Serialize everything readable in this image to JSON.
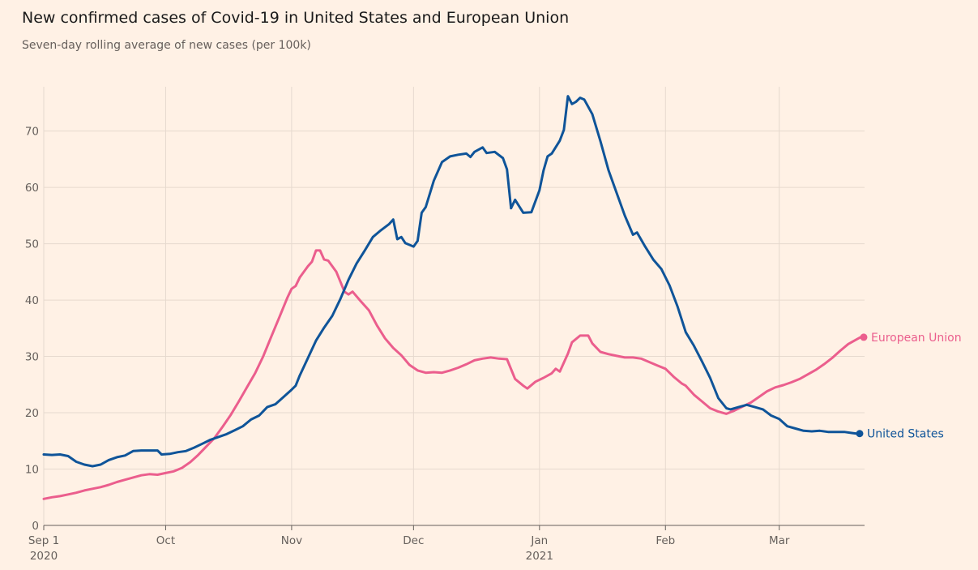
{
  "header": {
    "title": "New confirmed cases of Covid-19 in United States and European Union",
    "subtitle": "Seven-day rolling average of new cases (per 100k)"
  },
  "colors": {
    "background": "#fff1e5",
    "grid": "#e6d9ce",
    "axis": "#66605c",
    "us": "#0f5499",
    "eu": "#eb5e8d"
  },
  "chart_data": {
    "type": "line",
    "title": "New confirmed cases of Covid-19 in United States and European Union",
    "subtitle": "Seven-day rolling average of new cases (per 100k)",
    "xlabel": "",
    "ylabel": "",
    "x_range": [
      "2020-09-01",
      "2021-03-22"
    ],
    "ylim": [
      0,
      77
    ],
    "y_ticks": [
      0,
      10,
      20,
      30,
      40,
      50,
      60,
      70
    ],
    "x_ticks": [
      {
        "date": "2020-09-01",
        "label": "Sep 1",
        "sublabel": "2020"
      },
      {
        "date": "2020-10-01",
        "label": "Oct",
        "sublabel": ""
      },
      {
        "date": "2020-11-01",
        "label": "Nov",
        "sublabel": ""
      },
      {
        "date": "2020-12-01",
        "label": "Dec",
        "sublabel": ""
      },
      {
        "date": "2021-01-01",
        "label": "Jan",
        "sublabel": "2021"
      },
      {
        "date": "2021-02-01",
        "label": "Feb",
        "sublabel": ""
      },
      {
        "date": "2021-03-01",
        "label": "Mar",
        "sublabel": ""
      }
    ],
    "grid": true,
    "legend": "direct labels at line ends",
    "series": [
      {
        "name": "United States",
        "color": "#0f5499",
        "points": [
          [
            "2020-09-01",
            12.6
          ],
          [
            "2020-09-03",
            12.5
          ],
          [
            "2020-09-05",
            12.6
          ],
          [
            "2020-09-07",
            12.3
          ],
          [
            "2020-09-09",
            11.3
          ],
          [
            "2020-09-11",
            10.8
          ],
          [
            "2020-09-13",
            10.5
          ],
          [
            "2020-09-15",
            10.8
          ],
          [
            "2020-09-17",
            11.6
          ],
          [
            "2020-09-19",
            12.1
          ],
          [
            "2020-09-21",
            12.4
          ],
          [
            "2020-09-23",
            13.2
          ],
          [
            "2020-09-25",
            13.3
          ],
          [
            "2020-09-27",
            13.3
          ],
          [
            "2020-09-29",
            13.3
          ],
          [
            "2020-09-30",
            12.6
          ],
          [
            "2020-10-02",
            12.7
          ],
          [
            "2020-10-04",
            13.0
          ],
          [
            "2020-10-06",
            13.2
          ],
          [
            "2020-10-08",
            13.8
          ],
          [
            "2020-10-10",
            14.5
          ],
          [
            "2020-10-12",
            15.2
          ],
          [
            "2020-10-14",
            15.7
          ],
          [
            "2020-10-16",
            16.2
          ],
          [
            "2020-10-18",
            16.9
          ],
          [
            "2020-10-20",
            17.6
          ],
          [
            "2020-10-22",
            18.8
          ],
          [
            "2020-10-24",
            19.5
          ],
          [
            "2020-10-26",
            21.0
          ],
          [
            "2020-10-28",
            21.5
          ],
          [
            "2020-10-30",
            22.8
          ],
          [
            "2020-11-01",
            24.1
          ],
          [
            "2020-11-02",
            24.8
          ],
          [
            "2020-11-03",
            26.6
          ],
          [
            "2020-11-05",
            29.7
          ],
          [
            "2020-11-07",
            32.8
          ],
          [
            "2020-11-09",
            35.1
          ],
          [
            "2020-11-11",
            37.2
          ],
          [
            "2020-11-13",
            40.2
          ],
          [
            "2020-11-15",
            43.6
          ],
          [
            "2020-11-17",
            46.5
          ],
          [
            "2020-11-19",
            48.8
          ],
          [
            "2020-11-21",
            51.2
          ],
          [
            "2020-11-23",
            52.4
          ],
          [
            "2020-11-25",
            53.5
          ],
          [
            "2020-11-26",
            54.3
          ],
          [
            "2020-11-27",
            50.8
          ],
          [
            "2020-11-28",
            51.2
          ],
          [
            "2020-11-29",
            50.1
          ],
          [
            "2020-12-01",
            49.5
          ],
          [
            "2020-12-02",
            50.5
          ],
          [
            "2020-12-03",
            55.5
          ],
          [
            "2020-12-04",
            56.5
          ],
          [
            "2020-12-06",
            61.2
          ],
          [
            "2020-12-08",
            64.5
          ],
          [
            "2020-12-10",
            65.5
          ],
          [
            "2020-12-12",
            65.8
          ],
          [
            "2020-12-14",
            66.0
          ],
          [
            "2020-12-15",
            65.4
          ],
          [
            "2020-12-16",
            66.3
          ],
          [
            "2020-12-18",
            67.1
          ],
          [
            "2020-12-19",
            66.1
          ],
          [
            "2020-12-21",
            66.3
          ],
          [
            "2020-12-23",
            65.2
          ],
          [
            "2020-12-24",
            63.2
          ],
          [
            "2020-12-25",
            56.3
          ],
          [
            "2020-12-26",
            57.8
          ],
          [
            "2020-12-28",
            55.5
          ],
          [
            "2020-12-30",
            55.6
          ],
          [
            "2021-01-01",
            59.5
          ],
          [
            "2021-01-02",
            63.0
          ],
          [
            "2021-01-03",
            65.5
          ],
          [
            "2021-01-04",
            66.0
          ],
          [
            "2021-01-06",
            68.3
          ],
          [
            "2021-01-07",
            70.2
          ],
          [
            "2021-01-08",
            76.2
          ],
          [
            "2021-01-09",
            74.8
          ],
          [
            "2021-01-10",
            75.2
          ],
          [
            "2021-01-11",
            75.9
          ],
          [
            "2021-01-12",
            75.6
          ],
          [
            "2021-01-14",
            73.0
          ],
          [
            "2021-01-16",
            68.2
          ],
          [
            "2021-01-18",
            63.0
          ],
          [
            "2021-01-20",
            59.0
          ],
          [
            "2021-01-22",
            55.0
          ],
          [
            "2021-01-24",
            51.6
          ],
          [
            "2021-01-25",
            52.0
          ],
          [
            "2021-01-27",
            49.5
          ],
          [
            "2021-01-29",
            47.2
          ],
          [
            "2021-01-31",
            45.5
          ],
          [
            "2021-02-02",
            42.6
          ],
          [
            "2021-02-04",
            38.8
          ],
          [
            "2021-02-06",
            34.3
          ],
          [
            "2021-02-08",
            31.9
          ],
          [
            "2021-02-10",
            29.1
          ],
          [
            "2021-02-12",
            26.2
          ],
          [
            "2021-02-14",
            22.6
          ],
          [
            "2021-02-16",
            20.8
          ],
          [
            "2021-02-17",
            20.6
          ],
          [
            "2021-02-19",
            21.0
          ],
          [
            "2021-02-21",
            21.4
          ],
          [
            "2021-02-23",
            21.0
          ],
          [
            "2021-02-25",
            20.6
          ],
          [
            "2021-02-27",
            19.5
          ],
          [
            "2021-03-01",
            18.9
          ],
          [
            "2021-03-03",
            17.6
          ],
          [
            "2021-03-05",
            17.2
          ],
          [
            "2021-03-07",
            16.8
          ],
          [
            "2021-03-09",
            16.7
          ],
          [
            "2021-03-11",
            16.8
          ],
          [
            "2021-03-13",
            16.6
          ],
          [
            "2021-03-15",
            16.6
          ],
          [
            "2021-03-17",
            16.6
          ],
          [
            "2021-03-19",
            16.4
          ],
          [
            "2021-03-20",
            16.3
          ]
        ]
      },
      {
        "name": "European Union",
        "color": "#eb5e8d",
        "points": [
          [
            "2020-09-01",
            4.7
          ],
          [
            "2020-09-03",
            5.0
          ],
          [
            "2020-09-05",
            5.2
          ],
          [
            "2020-09-07",
            5.5
          ],
          [
            "2020-09-09",
            5.8
          ],
          [
            "2020-09-11",
            6.2
          ],
          [
            "2020-09-13",
            6.5
          ],
          [
            "2020-09-15",
            6.8
          ],
          [
            "2020-09-17",
            7.2
          ],
          [
            "2020-09-19",
            7.7
          ],
          [
            "2020-09-21",
            8.1
          ],
          [
            "2020-09-23",
            8.5
          ],
          [
            "2020-09-25",
            8.9
          ],
          [
            "2020-09-27",
            9.1
          ],
          [
            "2020-09-29",
            9.0
          ],
          [
            "2020-10-01",
            9.3
          ],
          [
            "2020-10-03",
            9.6
          ],
          [
            "2020-10-05",
            10.2
          ],
          [
            "2020-10-07",
            11.2
          ],
          [
            "2020-10-09",
            12.5
          ],
          [
            "2020-10-11",
            14.0
          ],
          [
            "2020-10-13",
            15.5
          ],
          [
            "2020-10-15",
            17.5
          ],
          [
            "2020-10-17",
            19.6
          ],
          [
            "2020-10-19",
            22.0
          ],
          [
            "2020-10-21",
            24.5
          ],
          [
            "2020-10-23",
            27.0
          ],
          [
            "2020-10-25",
            30.0
          ],
          [
            "2020-10-27",
            33.5
          ],
          [
            "2020-10-29",
            37.0
          ],
          [
            "2020-10-31",
            40.5
          ],
          [
            "2020-11-01",
            42.0
          ],
          [
            "2020-11-02",
            42.5
          ],
          [
            "2020-11-03",
            44.0
          ],
          [
            "2020-11-05",
            46.0
          ],
          [
            "2020-11-06",
            46.8
          ],
          [
            "2020-11-07",
            48.8
          ],
          [
            "2020-11-08",
            48.8
          ],
          [
            "2020-11-09",
            47.2
          ],
          [
            "2020-11-10",
            47.0
          ],
          [
            "2020-11-12",
            45.0
          ],
          [
            "2020-11-14",
            41.5
          ],
          [
            "2020-11-15",
            41.0
          ],
          [
            "2020-11-16",
            41.5
          ],
          [
            "2020-11-18",
            39.8
          ],
          [
            "2020-11-20",
            38.2
          ],
          [
            "2020-11-22",
            35.5
          ],
          [
            "2020-11-24",
            33.2
          ],
          [
            "2020-11-26",
            31.5
          ],
          [
            "2020-11-28",
            30.2
          ],
          [
            "2020-11-30",
            28.5
          ],
          [
            "2020-12-02",
            27.5
          ],
          [
            "2020-12-04",
            27.1
          ],
          [
            "2020-12-06",
            27.2
          ],
          [
            "2020-12-08",
            27.1
          ],
          [
            "2020-12-10",
            27.5
          ],
          [
            "2020-12-12",
            28.0
          ],
          [
            "2020-12-14",
            28.6
          ],
          [
            "2020-12-16",
            29.3
          ],
          [
            "2020-12-18",
            29.6
          ],
          [
            "2020-12-20",
            29.8
          ],
          [
            "2020-12-22",
            29.6
          ],
          [
            "2020-12-24",
            29.5
          ],
          [
            "2020-12-26",
            26.0
          ],
          [
            "2020-12-28",
            24.8
          ],
          [
            "2020-12-29",
            24.3
          ],
          [
            "2020-12-31",
            25.5
          ],
          [
            "2021-01-02",
            26.2
          ],
          [
            "2021-01-04",
            27.0
          ],
          [
            "2021-01-05",
            27.8
          ],
          [
            "2021-01-06",
            27.3
          ],
          [
            "2021-01-08",
            30.5
          ],
          [
            "2021-01-09",
            32.5
          ],
          [
            "2021-01-11",
            33.7
          ],
          [
            "2021-01-13",
            33.7
          ],
          [
            "2021-01-14",
            32.3
          ],
          [
            "2021-01-16",
            30.8
          ],
          [
            "2021-01-18",
            30.4
          ],
          [
            "2021-01-20",
            30.1
          ],
          [
            "2021-01-22",
            29.8
          ],
          [
            "2021-01-24",
            29.8
          ],
          [
            "2021-01-26",
            29.6
          ],
          [
            "2021-01-28",
            29.0
          ],
          [
            "2021-01-30",
            28.4
          ],
          [
            "2021-02-01",
            27.8
          ],
          [
            "2021-02-03",
            26.4
          ],
          [
            "2021-02-05",
            25.2
          ],
          [
            "2021-02-06",
            24.8
          ],
          [
            "2021-02-08",
            23.2
          ],
          [
            "2021-02-10",
            22.0
          ],
          [
            "2021-02-12",
            20.8
          ],
          [
            "2021-02-14",
            20.2
          ],
          [
            "2021-02-16",
            19.8
          ],
          [
            "2021-02-18",
            20.4
          ],
          [
            "2021-02-20",
            21.1
          ],
          [
            "2021-02-22",
            21.8
          ],
          [
            "2021-02-24",
            22.8
          ],
          [
            "2021-02-26",
            23.8
          ],
          [
            "2021-02-28",
            24.5
          ],
          [
            "2021-03-02",
            24.9
          ],
          [
            "2021-03-04",
            25.4
          ],
          [
            "2021-03-06",
            26.0
          ],
          [
            "2021-03-08",
            26.8
          ],
          [
            "2021-03-10",
            27.6
          ],
          [
            "2021-03-12",
            28.6
          ],
          [
            "2021-03-14",
            29.7
          ],
          [
            "2021-03-16",
            31.0
          ],
          [
            "2021-03-18",
            32.2
          ],
          [
            "2021-03-20",
            33.0
          ],
          [
            "2021-03-21",
            33.4
          ]
        ]
      }
    ]
  }
}
